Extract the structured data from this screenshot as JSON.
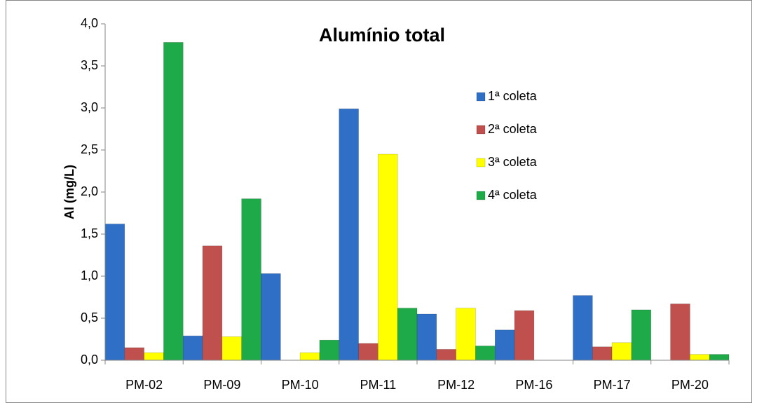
{
  "chart_data": {
    "type": "bar",
    "title": "Alumínio total",
    "y_label": "Al (mg/L)",
    "categories": [
      "PM-02",
      "PM-09",
      "PM-10",
      "PM-11",
      "PM-12",
      "PM-16",
      "PM-17",
      "PM-20"
    ],
    "series": [
      {
        "name": "1ª coleta",
        "color": "#2f6fc6",
        "values": [
          1.62,
          0.29,
          1.03,
          2.99,
          0.55,
          0.36,
          0.77,
          null
        ]
      },
      {
        "name": "2ª coleta",
        "color": "#c0504d",
        "values": [
          0.15,
          1.36,
          null,
          0.2,
          0.13,
          0.59,
          0.16,
          0.67
        ]
      },
      {
        "name": "3ª coleta",
        "color": "#ffff00",
        "values": [
          0.09,
          0.28,
          0.09,
          2.45,
          0.62,
          null,
          0.21,
          0.07
        ]
      },
      {
        "name": "4ª coleta",
        "color": "#1faa4a",
        "values": [
          3.78,
          1.92,
          0.24,
          0.62,
          0.17,
          null,
          0.6,
          0.07
        ]
      }
    ],
    "ylim": [
      0,
      4
    ],
    "yticks": [
      {
        "value": 0,
        "label": "0,0"
      },
      {
        "value": 0.5,
        "label": "0,5"
      },
      {
        "value": 1,
        "label": "1,0"
      },
      {
        "value": 1.5,
        "label": "1,5"
      },
      {
        "value": 2,
        "label": "2,0"
      },
      {
        "value": 2.5,
        "label": "2,5"
      },
      {
        "value": 3,
        "label": "3,0"
      },
      {
        "value": 3.5,
        "label": "3,5"
      },
      {
        "value": 4,
        "label": "4,0"
      }
    ],
    "grid": false,
    "legend": "upper right"
  }
}
